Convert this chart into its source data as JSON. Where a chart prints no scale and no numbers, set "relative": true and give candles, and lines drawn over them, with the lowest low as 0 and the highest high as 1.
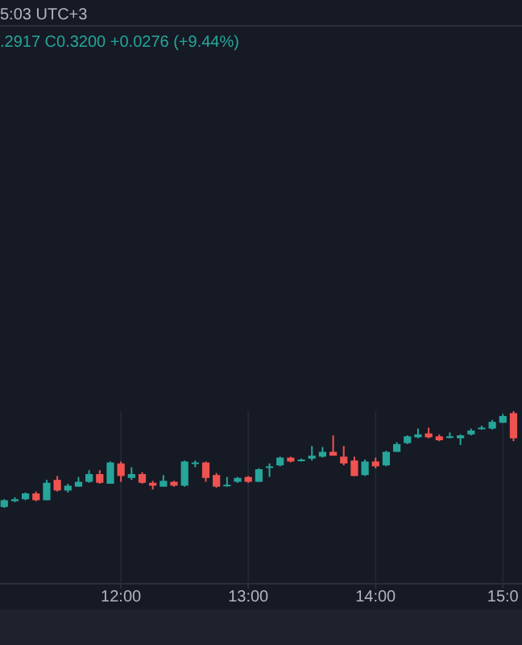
{
  "chart_data": {
    "type": "candlestick",
    "relative": true,
    "annotations": [
      "5:03 UTC+3",
      ".2917  C0.3200  +0.0276 (+9.44%)"
    ],
    "x": [
      11.0833,
      11.1667,
      11.25,
      11.3333,
      11.4167,
      11.5,
      11.5833,
      11.6667,
      11.75,
      11.8333,
      11.9167,
      12,
      12.0833,
      12.1667,
      12.25,
      12.3333,
      12.4167,
      12.5,
      12.5833,
      12.6667,
      12.75,
      12.8333,
      12.9167,
      13,
      13.0833,
      13.1667,
      13.25,
      13.3333,
      13.4167,
      13.5,
      13.5833,
      13.6667,
      13.75,
      13.8333,
      13.9167,
      14,
      14.0833,
      14.1667,
      14.25,
      14.3333,
      14.4167,
      14.5,
      14.5833,
      14.6667,
      14.75,
      14.8333,
      14.9167,
      15,
      15.0833
    ],
    "ohlc": [
      [
        0.01,
        0.09,
        0,
        0.08
      ],
      [
        0.07,
        0.11,
        0.06,
        0.09
      ],
      [
        0.09,
        0.16,
        0.08,
        0.15
      ],
      [
        0.15,
        0.17,
        0.07,
        0.08
      ],
      [
        0.08,
        0.29,
        0.08,
        0.26
      ],
      [
        0.29,
        0.33,
        0.17,
        0.18
      ],
      [
        0.18,
        0.25,
        0.16,
        0.23
      ],
      [
        0.22,
        0.32,
        0.22,
        0.27
      ],
      [
        0.27,
        0.39,
        0.26,
        0.35
      ],
      [
        0.35,
        0.39,
        0.25,
        0.26
      ],
      [
        0.25,
        0.48,
        0.25,
        0.47
      ],
      [
        0.46,
        0.48,
        0.27,
        0.33
      ],
      [
        0.31,
        0.42,
        0.29,
        0.35
      ],
      [
        0.35,
        0.37,
        0.25,
        0.26
      ],
      [
        0.26,
        0.28,
        0.19,
        0.23
      ],
      [
        0.22,
        0.34,
        0.22,
        0.28
      ],
      [
        0.27,
        0.28,
        0.22,
        0.23
      ],
      [
        0.23,
        0.49,
        0.22,
        0.48
      ],
      [
        0.46,
        0.49,
        0.42,
        0.47
      ],
      [
        0.47,
        0.48,
        0.27,
        0.31
      ],
      [
        0.34,
        0.36,
        0.21,
        0.22
      ],
      [
        0.23,
        0.32,
        0.22,
        0.24
      ],
      [
        0.27,
        0.32,
        0.26,
        0.31
      ],
      [
        0.32,
        0.33,
        0.26,
        0.27
      ],
      [
        0.27,
        0.41,
        0.27,
        0.4
      ],
      [
        0.42,
        0.46,
        0.32,
        0.43
      ],
      [
        0.44,
        0.53,
        0.43,
        0.52
      ],
      [
        0.52,
        0.53,
        0.47,
        0.48
      ],
      [
        0.49,
        0.51,
        0.48,
        0.5
      ],
      [
        0.51,
        0.64,
        0.49,
        0.54
      ],
      [
        0.53,
        0.63,
        0.52,
        0.58
      ],
      [
        0.58,
        0.75,
        0.54,
        0.54
      ],
      [
        0.53,
        0.64,
        0.44,
        0.46
      ],
      [
        0.49,
        0.53,
        0.33,
        0.33
      ],
      [
        0.34,
        0.5,
        0.33,
        0.48
      ],
      [
        0.48,
        0.52,
        0.41,
        0.43
      ],
      [
        0.44,
        0.59,
        0.43,
        0.58
      ],
      [
        0.58,
        0.68,
        0.58,
        0.66
      ],
      [
        0.67,
        0.75,
        0.66,
        0.74
      ],
      [
        0.73,
        0.82,
        0.72,
        0.76
      ],
      [
        0.77,
        0.83,
        0.72,
        0.73
      ],
      [
        0.74,
        0.76,
        0.69,
        0.7
      ],
      [
        0.73,
        0.78,
        0.72,
        0.74
      ],
      [
        0.72,
        0.76,
        0.65,
        0.75
      ],
      [
        0.76,
        0.82,
        0.75,
        0.8
      ],
      [
        0.82,
        0.85,
        0.81,
        0.83
      ],
      [
        0.82,
        0.91,
        0.81,
        0.89
      ],
      [
        0.88,
        0.97,
        0.88,
        0.95
      ],
      [
        0.98,
        1,
        0.69,
        0.72
      ]
    ],
    "colors": [
      "#26a69a",
      "#26a69a",
      "#26a69a",
      "#ef5350",
      "#26a69a",
      "#ef5350",
      "#26a69a",
      "#26a69a",
      "#26a69a",
      "#ef5350",
      "#26a69a",
      "#ef5350",
      "#26a69a",
      "#ef5350",
      "#ef5350",
      "#26a69a",
      "#ef5350",
      "#26a69a",
      "#26a69a",
      "#ef5350",
      "#ef5350",
      "#26a69a",
      "#26a69a",
      "#ef5350",
      "#26a69a",
      "#26a69a",
      "#26a69a",
      "#ef5350",
      "#26a69a",
      "#26a69a",
      "#26a69a",
      "#ef5350",
      "#ef5350",
      "#ef5350",
      "#26a69a",
      "#ef5350",
      "#26a69a",
      "#26a69a",
      "#26a69a",
      "#26a69a",
      "#ef5350",
      "#ef5350",
      "#26a69a",
      "#26a69a",
      "#26a69a",
      "#26a69a",
      "#26a69a",
      "#26a69a",
      "#ef5350"
    ],
    "xlim": [
      11.05,
      15.15
    ],
    "xticks": [
      {
        "value": 12,
        "label": "12:00"
      },
      {
        "value": 13,
        "label": "13:00"
      },
      {
        "value": 14,
        "label": "14:00"
      },
      {
        "value": 15,
        "label": "15:0"
      }
    ],
    "grid": "x"
  }
}
